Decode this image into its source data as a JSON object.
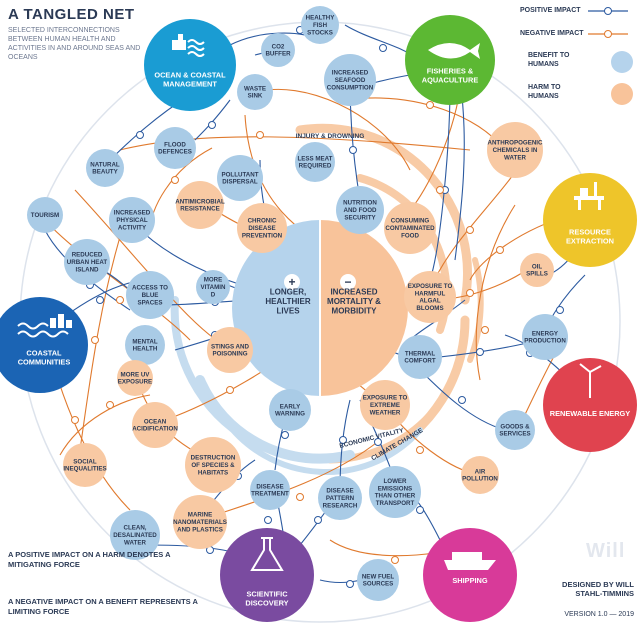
{
  "title": "A TANGLED NET",
  "subtitle": "SELECTED INTERCONNECTIONS BETWEEN HUMAN HEALTH AND ACTIVITIES IN AND AROUND SEAS AND OCEANS",
  "legend": {
    "positive": "POSITIVE IMPACT",
    "negative": "NEGATIVE IMPACT",
    "benefit": "BENEFIT TO HUMANS",
    "harm": "HARM TO HUMANS"
  },
  "notes": {
    "positive": "A POSITIVE IMPACT ON A HARM DENOTES A MITIGATING FORCE",
    "negative": "A NEGATIVE IMPACT ON A BENEFIT REPRESENTS A LIMITING FORCE"
  },
  "credit": "DESIGNED BY WILL STAHL-TIMMINS",
  "version": "VERSION 1.0 — 2019",
  "watermark": "Will",
  "colors": {
    "blue_node": "#a9cbe6",
    "orange_node": "#f8c9a3",
    "positive_line": "#2c5aa0",
    "negative_line": "#e07a2e",
    "ocean": "#1a9cd3",
    "fisheries": "#5cb833",
    "resource": "#eec52a",
    "renewable": "#e0434f",
    "shipping": "#d83a99",
    "scientific": "#7a4ba0",
    "coastal": "#1b64b4"
  },
  "center": {
    "benefit_label": "LONGER, HEALTHIER LIVES",
    "harm_label": "INCREASED MORTALITY & MORBIDITY"
  },
  "rings": {
    "injury": "INJURY & DROWNING",
    "economic": "ECONOMIC VITALITY",
    "climate": "CLIMATE CHANGE"
  },
  "activities": {
    "ocean": "OCEAN & COASTAL MANAGEMENT",
    "fisheries": "FISHERIES & AQUACULTURE",
    "resource": "RESOURCE EXTRACTION",
    "renewable": "RENEWABLE ENERGY",
    "shipping": "SHIPPING",
    "scientific": "SCIENTIFIC DISCOVERY",
    "coastal": "COASTAL COMMUNITIES"
  },
  "factors": {
    "healthy_fish": "HEALTHY FISH STOCKS",
    "co2_buffer": "CO2 BUFFER",
    "waste_sink": "WASTE SINK",
    "seafood": "INCREASED SEAFOOD CONSUMPTION",
    "flood": "FLOOD DEFENCES",
    "natural_beauty": "NATURAL BEAUTY",
    "less_meat": "LESS MEAT REQUIRED",
    "pollutant": "POLLUTANT DISPERSAL",
    "anthropogenic": "ANTHROPOGENIC CHEMICALS IN WATER",
    "tourism": "TOURISM",
    "antimicrobial": "ANTIMICROBIAL RESISTANCE",
    "physical": "INCREASED PHYSICAL ACTIVITY",
    "chronic": "CHRONIC DISEASE PREVENTION",
    "nutrition": "NUTRITION AND FOOD SECURITY",
    "contaminated": "CONSUMING CONTAMINATED FOOD",
    "heat_island": "REDUCED URBAN HEAT ISLAND",
    "oil_spills": "OIL SPILLS",
    "blue_spaces": "ACCESS TO BLUE SPACES",
    "vitamin_d": "MORE VITAMIN D",
    "algal": "EXPOSURE TO HARMFUL ALGAL BLOOMS",
    "energy": "ENERGY PRODUCTION",
    "mental": "MENTAL HEALTH",
    "stings": "STINGS AND POISONING",
    "thermal": "THERMAL COMFORT",
    "uv": "MORE UV EXPOSURE",
    "early_warning": "EARLY WARNING",
    "extreme_weather": "EXPOSURE TO EXTREME WEATHER",
    "acidification": "OCEAN ACIDIFICATION",
    "goods": "GOODS & SERVICES",
    "inequalities": "SOCIAL INEQUALITIES",
    "destruction": "DESTRUCTION OF SPECIES & HABITATS",
    "air_pollution": "AIR POLLUTION",
    "lower_emissions": "LOWER EMISSIONS THAN OTHER TRANSPORT",
    "disease_treatment": "DISEASE TREATMENT",
    "disease_pattern": "DISEASE PATTERN RESEARCH",
    "desalinated": "CLEAN, DESALINATED WATER",
    "nanomaterials": "MARINE NANOMATERIALS AND PLASTICS",
    "fuel": "NEW FUEL SOURCES"
  }
}
